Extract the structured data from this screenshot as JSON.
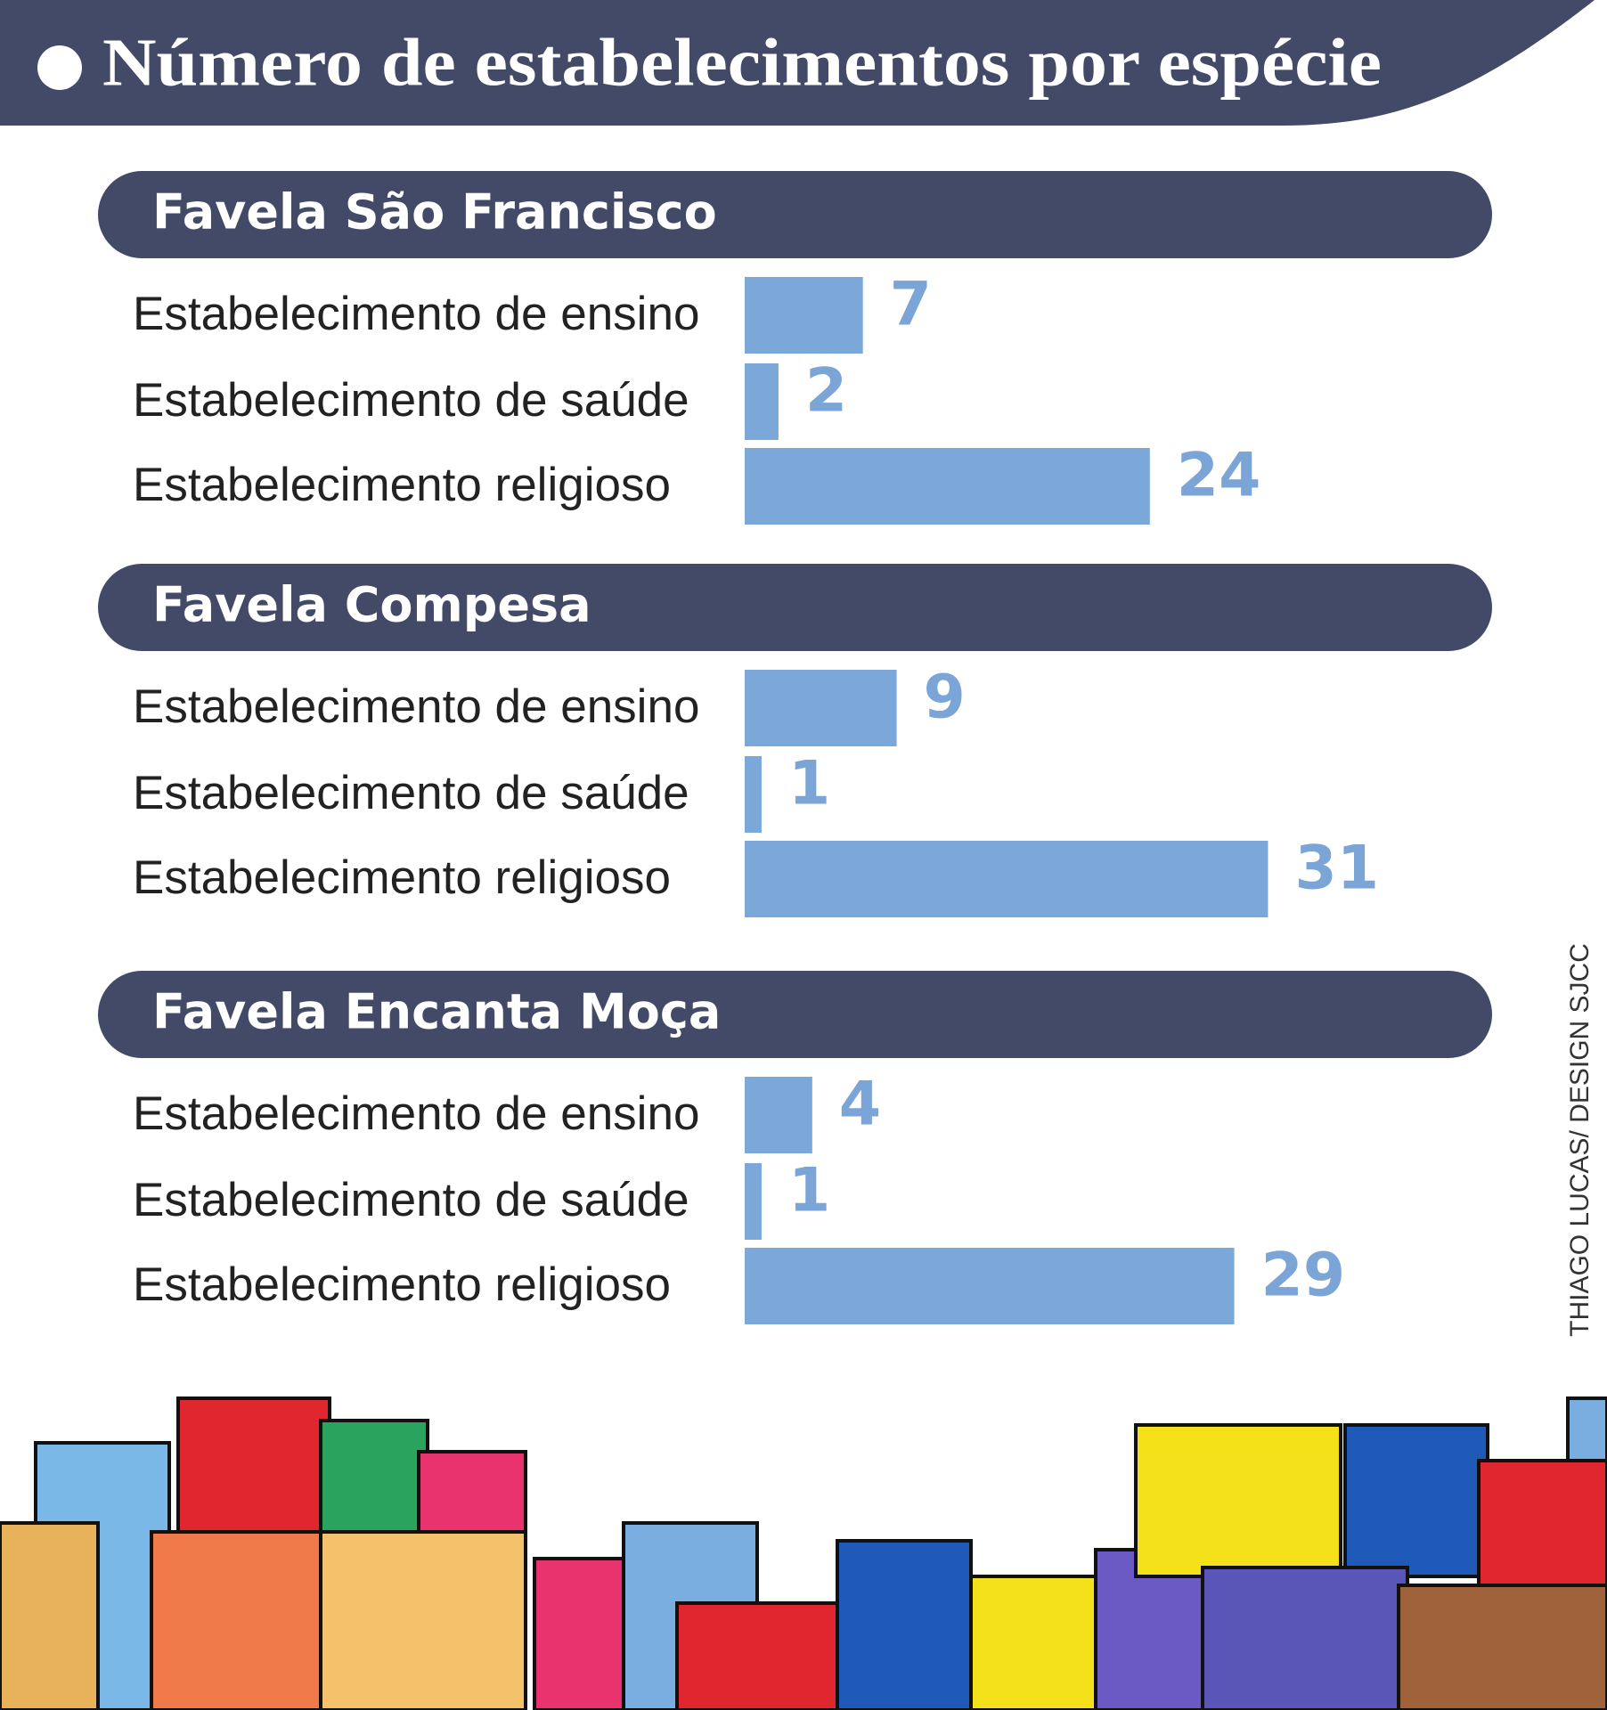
{
  "title": "Número de estabelecimentos por espécie",
  "credit": "THIAGO LUCAS/ DESIGN SJCC",
  "chart_data": [
    {
      "type": "bar",
      "title": "Favela São Francisco",
      "categories": [
        "Estabelecimento de ensino",
        "Estabelecimento de saúde",
        "Estabelecimento religioso"
      ],
      "values": [
        7,
        2,
        24
      ],
      "color": "#7ba7d9"
    },
    {
      "type": "bar",
      "title": "Favela Compesa",
      "categories": [
        "Estabelecimento de ensino",
        "Estabelecimento de saúde",
        "Estabelecimento religioso"
      ],
      "values": [
        9,
        1,
        31
      ],
      "color": "#7ba7d9"
    },
    {
      "type": "bar",
      "title": "Favela Encanta Moça",
      "categories": [
        "Estabelecimento de ensino",
        "Estabelecimento de saúde",
        "Estabelecimento religioso"
      ],
      "values": [
        4,
        1,
        29
      ],
      "color": "#7ba7d9"
    }
  ]
}
